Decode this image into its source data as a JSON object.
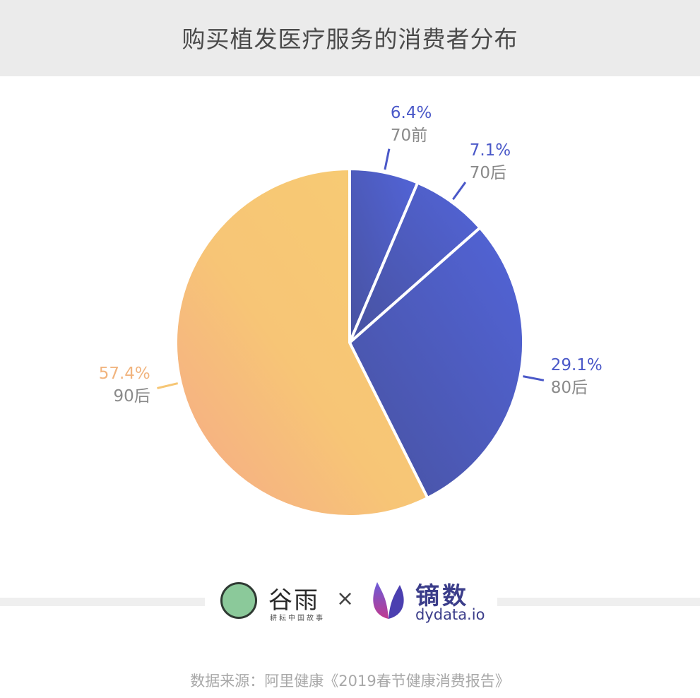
{
  "title": "购买植发医疗服务的消费者分布",
  "chart_data": {
    "type": "pie",
    "title": "购买植发医疗服务的消费者分布",
    "slices": [
      {
        "label": "70前",
        "value": 6.4,
        "value_label": "6.4%",
        "color": "#5061d3"
      },
      {
        "label": "70后",
        "value": 7.1,
        "value_label": "7.1%",
        "color": "#5061d3"
      },
      {
        "label": "80后",
        "value": 29.1,
        "value_label": "29.1%",
        "color": "#5061d3"
      },
      {
        "label": "90后",
        "value": 57.4,
        "value_label": "57.4%",
        "color": "#f6c674"
      }
    ],
    "start_angle": "12 o'clock, clockwise",
    "colors": {
      "blue": "#5061d3",
      "blue_dark": "#4854a6",
      "orange": "#f6c674",
      "orange_light": "#f5ae84",
      "label_value_blue": "#4a58c8",
      "label_value_orange": "#f1b47e",
      "label_category": "#8a8a8a"
    }
  },
  "logos": {
    "guyu_name": "谷雨",
    "guyu_sub": "耕耘中国故事",
    "separator": "×",
    "dydata_name": "镝数",
    "dydata_url": "dydata.io"
  },
  "source": "数据来源：阿里健康《2019春节健康消费报告》"
}
